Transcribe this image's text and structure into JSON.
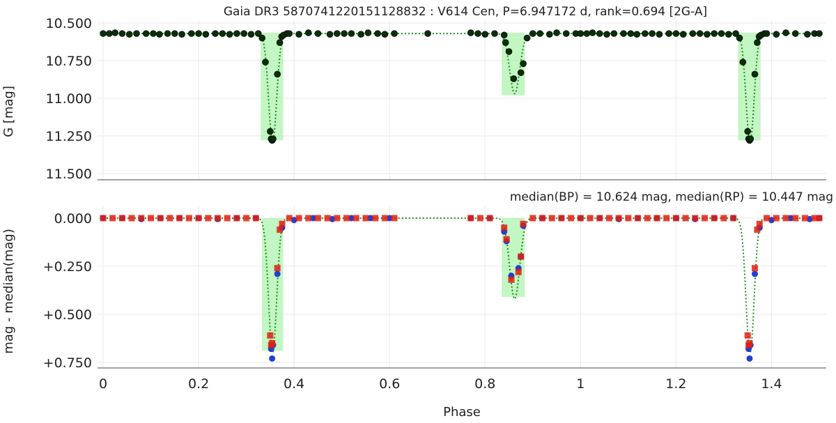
{
  "chart_data": [
    {
      "type": "scatter",
      "title": "Gaia DR3 5870741220151128832 : V614 Cen, P=6.947172 d, rank=0.694 [2G-A]",
      "xlabel": "",
      "ylabel": "G [mag]",
      "ylim": [
        11.55,
        10.5
      ],
      "y_inverted": true,
      "yticks": [
        "10.500",
        "10.750",
        "11.000",
        "11.250",
        "11.500"
      ],
      "ytick_values": [
        10.5,
        10.75,
        11.0,
        11.25,
        11.5
      ],
      "grid": true,
      "legend": "none",
      "colors": {
        "points": "#0a2e0a",
        "model": "#1a8a1a",
        "eclipse_band": "#90ee90"
      },
      "eclipse_bands": [
        {
          "x0": 0.33,
          "x1": 0.377,
          "y0": 10.565,
          "y1": 11.28
        },
        {
          "x0": 0.835,
          "x1": 0.883,
          "y0": 10.565,
          "y1": 10.98
        }
      ],
      "series": [
        {
          "name": "G",
          "x": [
            0.0,
            0.013,
            0.025,
            0.04,
            0.055,
            0.07,
            0.09,
            0.105,
            0.118,
            0.135,
            0.15,
            0.165,
            0.185,
            0.2,
            0.215,
            0.235,
            0.25,
            0.265,
            0.28,
            0.295,
            0.31,
            0.325,
            0.333,
            0.34,
            0.35,
            0.352,
            0.354,
            0.356,
            0.365,
            0.37,
            0.374,
            0.378,
            0.385,
            0.39,
            0.41,
            0.43,
            0.45,
            0.475,
            0.49,
            0.505,
            0.52,
            0.54,
            0.555,
            0.575,
            0.59,
            0.61,
            0.68,
            0.77,
            0.785,
            0.8,
            0.82,
            0.84,
            0.843,
            0.85,
            0.86,
            0.875,
            0.88,
            0.888,
            0.9,
            0.915,
            0.935,
            0.95,
            0.97,
            0.99,
            1.0,
            1.013,
            1.025,
            1.04,
            1.055,
            1.07,
            1.09,
            1.105,
            1.118,
            1.135,
            1.15,
            1.165,
            1.185,
            1.2,
            1.215,
            1.235,
            1.25,
            1.265,
            1.28,
            1.295,
            1.31,
            1.325,
            1.333,
            1.34,
            1.35,
            1.352,
            1.354,
            1.356,
            1.365,
            1.37,
            1.374,
            1.378,
            1.385,
            1.39,
            1.41,
            1.43,
            1.45,
            1.475,
            1.49,
            1.5
          ],
          "y": [
            10.57,
            10.57,
            10.565,
            10.57,
            10.575,
            10.57,
            10.57,
            10.57,
            10.575,
            10.57,
            10.57,
            10.575,
            10.57,
            10.57,
            10.575,
            10.57,
            10.57,
            10.575,
            10.57,
            10.57,
            10.575,
            10.57,
            10.6,
            10.76,
            11.22,
            11.27,
            11.28,
            11.27,
            10.84,
            10.63,
            10.59,
            10.58,
            10.57,
            10.57,
            10.575,
            10.565,
            10.57,
            10.575,
            10.57,
            10.57,
            10.57,
            10.575,
            10.565,
            10.57,
            10.575,
            10.57,
            10.57,
            10.565,
            10.57,
            10.575,
            10.57,
            10.58,
            10.63,
            10.69,
            10.87,
            10.83,
            10.77,
            10.6,
            10.57,
            10.57,
            10.575,
            10.565,
            10.57,
            10.57,
            10.57,
            10.57,
            10.565,
            10.57,
            10.575,
            10.57,
            10.57,
            10.57,
            10.575,
            10.57,
            10.57,
            10.575,
            10.57,
            10.57,
            10.575,
            10.57,
            10.57,
            10.575,
            10.57,
            10.57,
            10.575,
            10.57,
            10.6,
            10.76,
            11.22,
            11.27,
            11.28,
            11.27,
            10.84,
            10.63,
            10.59,
            10.58,
            10.57,
            10.57,
            10.575,
            10.565,
            10.57,
            10.575,
            10.57,
            10.57
          ]
        }
      ]
    },
    {
      "type": "scatter",
      "title": "median(BP) = 10.624 mag, median(RP) = 10.447 mag",
      "xlabel": "Phase",
      "ylabel": "mag - median(mag)",
      "xlim": [
        -0.02,
        1.52
      ],
      "ylim": [
        0.79,
        -0.06
      ],
      "y_inverted": true,
      "xticks": [
        "0",
        "0.2",
        "0.4",
        "0.6",
        "0.8",
        "1",
        "1.2",
        "1.4"
      ],
      "xtick_values": [
        0,
        0.2,
        0.4,
        0.6,
        0.8,
        1.0,
        1.2,
        1.4
      ],
      "yticks": [
        "0.000",
        "+0.250",
        "+0.500",
        "+0.750"
      ],
      "ytick_values": [
        0.0,
        0.25,
        0.5,
        0.75
      ],
      "grid": true,
      "legend": "none",
      "colors": {
        "bp": "#1f3fd6",
        "rp": "#e02010",
        "model": "#1a8a1a",
        "eclipse_band": "#90ee90"
      },
      "eclipse_bands": [
        {
          "x0": 0.333,
          "x1": 0.377,
          "y0": 0.0,
          "y1": 0.69
        },
        {
          "x0": 0.835,
          "x1": 0.883,
          "y0": 0.0,
          "y1": 0.41
        }
      ],
      "series": [
        {
          "name": "BP",
          "x": [
            0.0,
            0.04,
            0.08,
            0.12,
            0.16,
            0.2,
            0.24,
            0.28,
            0.32,
            0.352,
            0.354,
            0.356,
            0.365,
            0.375,
            0.4,
            0.44,
            0.48,
            0.52,
            0.56,
            0.6,
            0.77,
            0.81,
            0.84,
            0.845,
            0.855,
            0.87,
            0.875,
            0.88,
            0.92,
            0.96,
            1.0,
            1.04,
            1.08,
            1.12,
            1.16,
            1.2,
            1.24,
            1.28,
            1.32,
            1.352,
            1.354,
            1.356,
            1.365,
            1.375,
            1.4,
            1.44,
            1.48,
            1.5
          ],
          "y": [
            0.0,
            0.0,
            0.005,
            0.0,
            0.0,
            0.0,
            0.005,
            0.0,
            0.0,
            0.68,
            0.73,
            0.66,
            0.29,
            0.05,
            0.01,
            0.0,
            0.005,
            0.0,
            0.0,
            0.0,
            0.0,
            0.0,
            0.07,
            0.12,
            0.3,
            0.26,
            0.2,
            0.04,
            0.0,
            0.0,
            0.0,
            0.0,
            0.005,
            0.0,
            0.0,
            0.0,
            0.005,
            0.0,
            0.0,
            0.68,
            0.73,
            0.66,
            0.29,
            0.05,
            0.01,
            0.0,
            0.005,
            0.0
          ]
        },
        {
          "name": "RP",
          "x": [
            0.0,
            0.02,
            0.04,
            0.06,
            0.08,
            0.1,
            0.12,
            0.14,
            0.16,
            0.18,
            0.2,
            0.22,
            0.24,
            0.26,
            0.28,
            0.3,
            0.32,
            0.35,
            0.352,
            0.354,
            0.365,
            0.37,
            0.375,
            0.39,
            0.41,
            0.43,
            0.45,
            0.47,
            0.49,
            0.51,
            0.53,
            0.55,
            0.57,
            0.59,
            0.61,
            0.77,
            0.79,
            0.81,
            0.84,
            0.845,
            0.855,
            0.87,
            0.875,
            0.88,
            0.9,
            0.92,
            0.94,
            0.96,
            0.98,
            1.0,
            1.02,
            1.04,
            1.06,
            1.08,
            1.1,
            1.12,
            1.14,
            1.16,
            1.18,
            1.2,
            1.22,
            1.24,
            1.26,
            1.28,
            1.3,
            1.32,
            1.35,
            1.352,
            1.354,
            1.365,
            1.37,
            1.375,
            1.39,
            1.41,
            1.43,
            1.45,
            1.47,
            1.49,
            1.5
          ],
          "y": [
            0.0,
            0.0,
            0.0,
            0.0,
            0.0,
            0.0,
            0.0,
            0.0,
            0.0,
            0.0,
            0.0,
            0.0,
            0.0,
            0.0,
            0.0,
            0.0,
            0.0,
            0.61,
            0.66,
            0.65,
            0.26,
            0.06,
            0.03,
            0.0,
            0.0,
            0.0,
            0.0,
            0.0,
            0.0,
            0.0,
            0.0,
            0.0,
            0.0,
            0.0,
            0.0,
            0.0,
            0.0,
            0.0,
            0.05,
            0.11,
            0.32,
            0.28,
            0.2,
            0.03,
            0.0,
            0.0,
            0.0,
            0.0,
            0.0,
            0.0,
            0.0,
            0.0,
            0.0,
            0.0,
            0.0,
            0.0,
            0.0,
            0.0,
            0.0,
            0.0,
            0.0,
            0.0,
            0.0,
            0.0,
            0.0,
            0.0,
            0.61,
            0.66,
            0.65,
            0.26,
            0.06,
            0.03,
            0.0,
            0.0,
            0.0,
            0.0,
            0.0,
            0.0,
            0.0
          ]
        }
      ]
    }
  ]
}
